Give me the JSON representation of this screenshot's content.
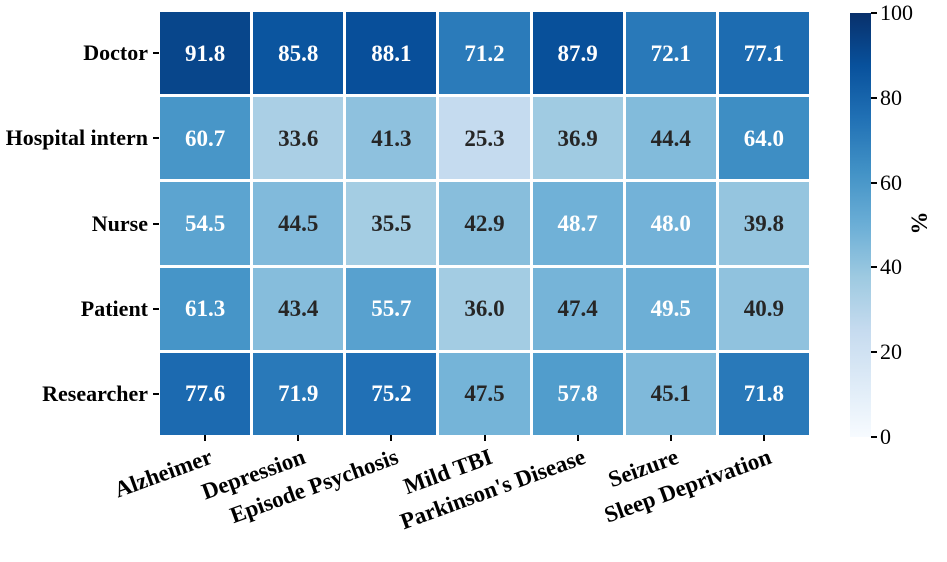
{
  "chart_data": {
    "type": "heatmap",
    "title": "",
    "rows": [
      "Doctor",
      "Hospital intern",
      "Nurse",
      "Patient",
      "Researcher"
    ],
    "columns": [
      "Alzheimer",
      "Depression",
      "Episode Psychosis",
      "Mild TBI",
      "Parkinson's Disease",
      "Seizure",
      "Sleep Deprivation"
    ],
    "values": [
      [
        91.8,
        85.8,
        88.1,
        71.2,
        87.9,
        72.1,
        77.1
      ],
      [
        60.7,
        33.6,
        41.3,
        25.3,
        36.9,
        44.4,
        64.0
      ],
      [
        54.5,
        44.5,
        35.5,
        42.9,
        48.7,
        48.0,
        39.8
      ],
      [
        61.3,
        43.4,
        55.7,
        36.0,
        47.4,
        49.5,
        40.9
      ],
      [
        77.6,
        71.9,
        75.2,
        47.5,
        57.8,
        45.1,
        71.8
      ]
    ],
    "value_format_decimals": 1,
    "colorbar": {
      "label": "%",
      "ticks": [
        0,
        20,
        40,
        60,
        80,
        100
      ],
      "min": 0,
      "max": 100,
      "position": "right"
    },
    "colormap": {
      "name": "Blues",
      "anchors": [
        "#f7fbff",
        "#deebf7",
        "#c6dbef",
        "#9ecae1",
        "#6baed6",
        "#4292c6",
        "#2171b5",
        "#08519c",
        "#08306b"
      ]
    },
    "style": {
      "grid_line_color": "#ffffff",
      "annotation_text_light": "#ffffff",
      "annotation_text_dark": "#262626",
      "tick_color": "#000000",
      "luminance_threshold": 0.405,
      "x_tick_rotation_deg": 20
    },
    "legend_position": "none",
    "xlabel": "",
    "ylabel": ""
  }
}
